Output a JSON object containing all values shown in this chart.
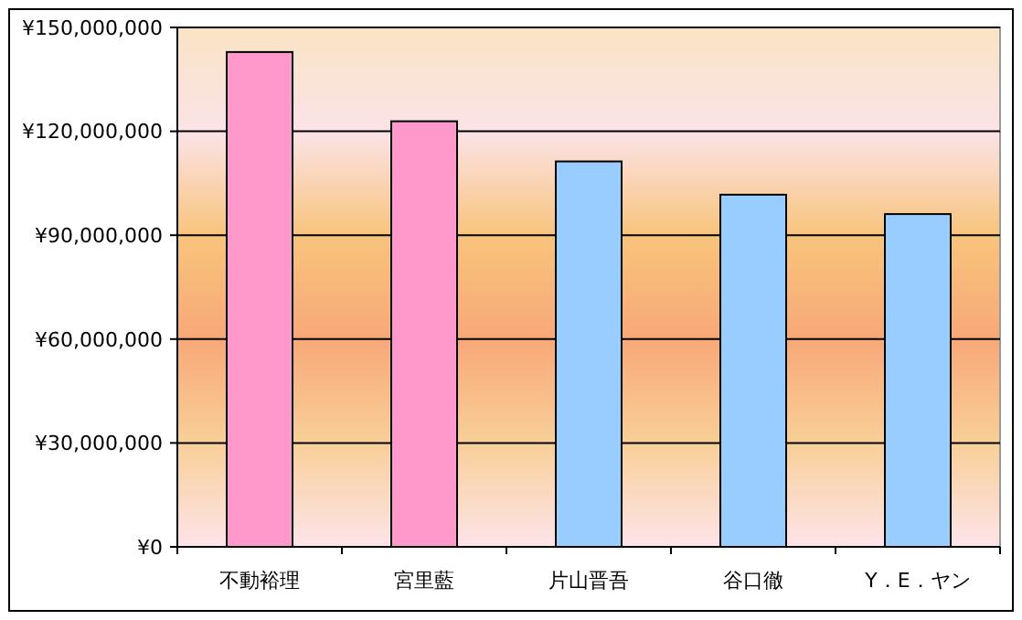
{
  "chart_data": {
    "type": "bar",
    "categories": [
      "不動裕理",
      "宮里藍",
      "片山晋吾",
      "谷口徹",
      "Y．E．ヤン"
    ],
    "values": [
      142900000,
      122900000,
      111300000,
      101700000,
      96100000
    ],
    "colors": [
      "#ff99cc",
      "#ff99cc",
      "#99ccff",
      "#99ccff",
      "#99ccff"
    ],
    "ylim": [
      0,
      150000000
    ],
    "yticks": [
      {
        "value": 0,
        "label": "¥0"
      },
      {
        "value": 30000000,
        "label": "¥30,000,000"
      },
      {
        "value": 60000000,
        "label": "¥60,000,000"
      },
      {
        "value": 90000000,
        "label": "¥90,000,000"
      },
      {
        "value": 120000000,
        "label": "¥120,000,000"
      },
      {
        "value": 150000000,
        "label": "¥150,000,000"
      }
    ],
    "grid": "y"
  }
}
